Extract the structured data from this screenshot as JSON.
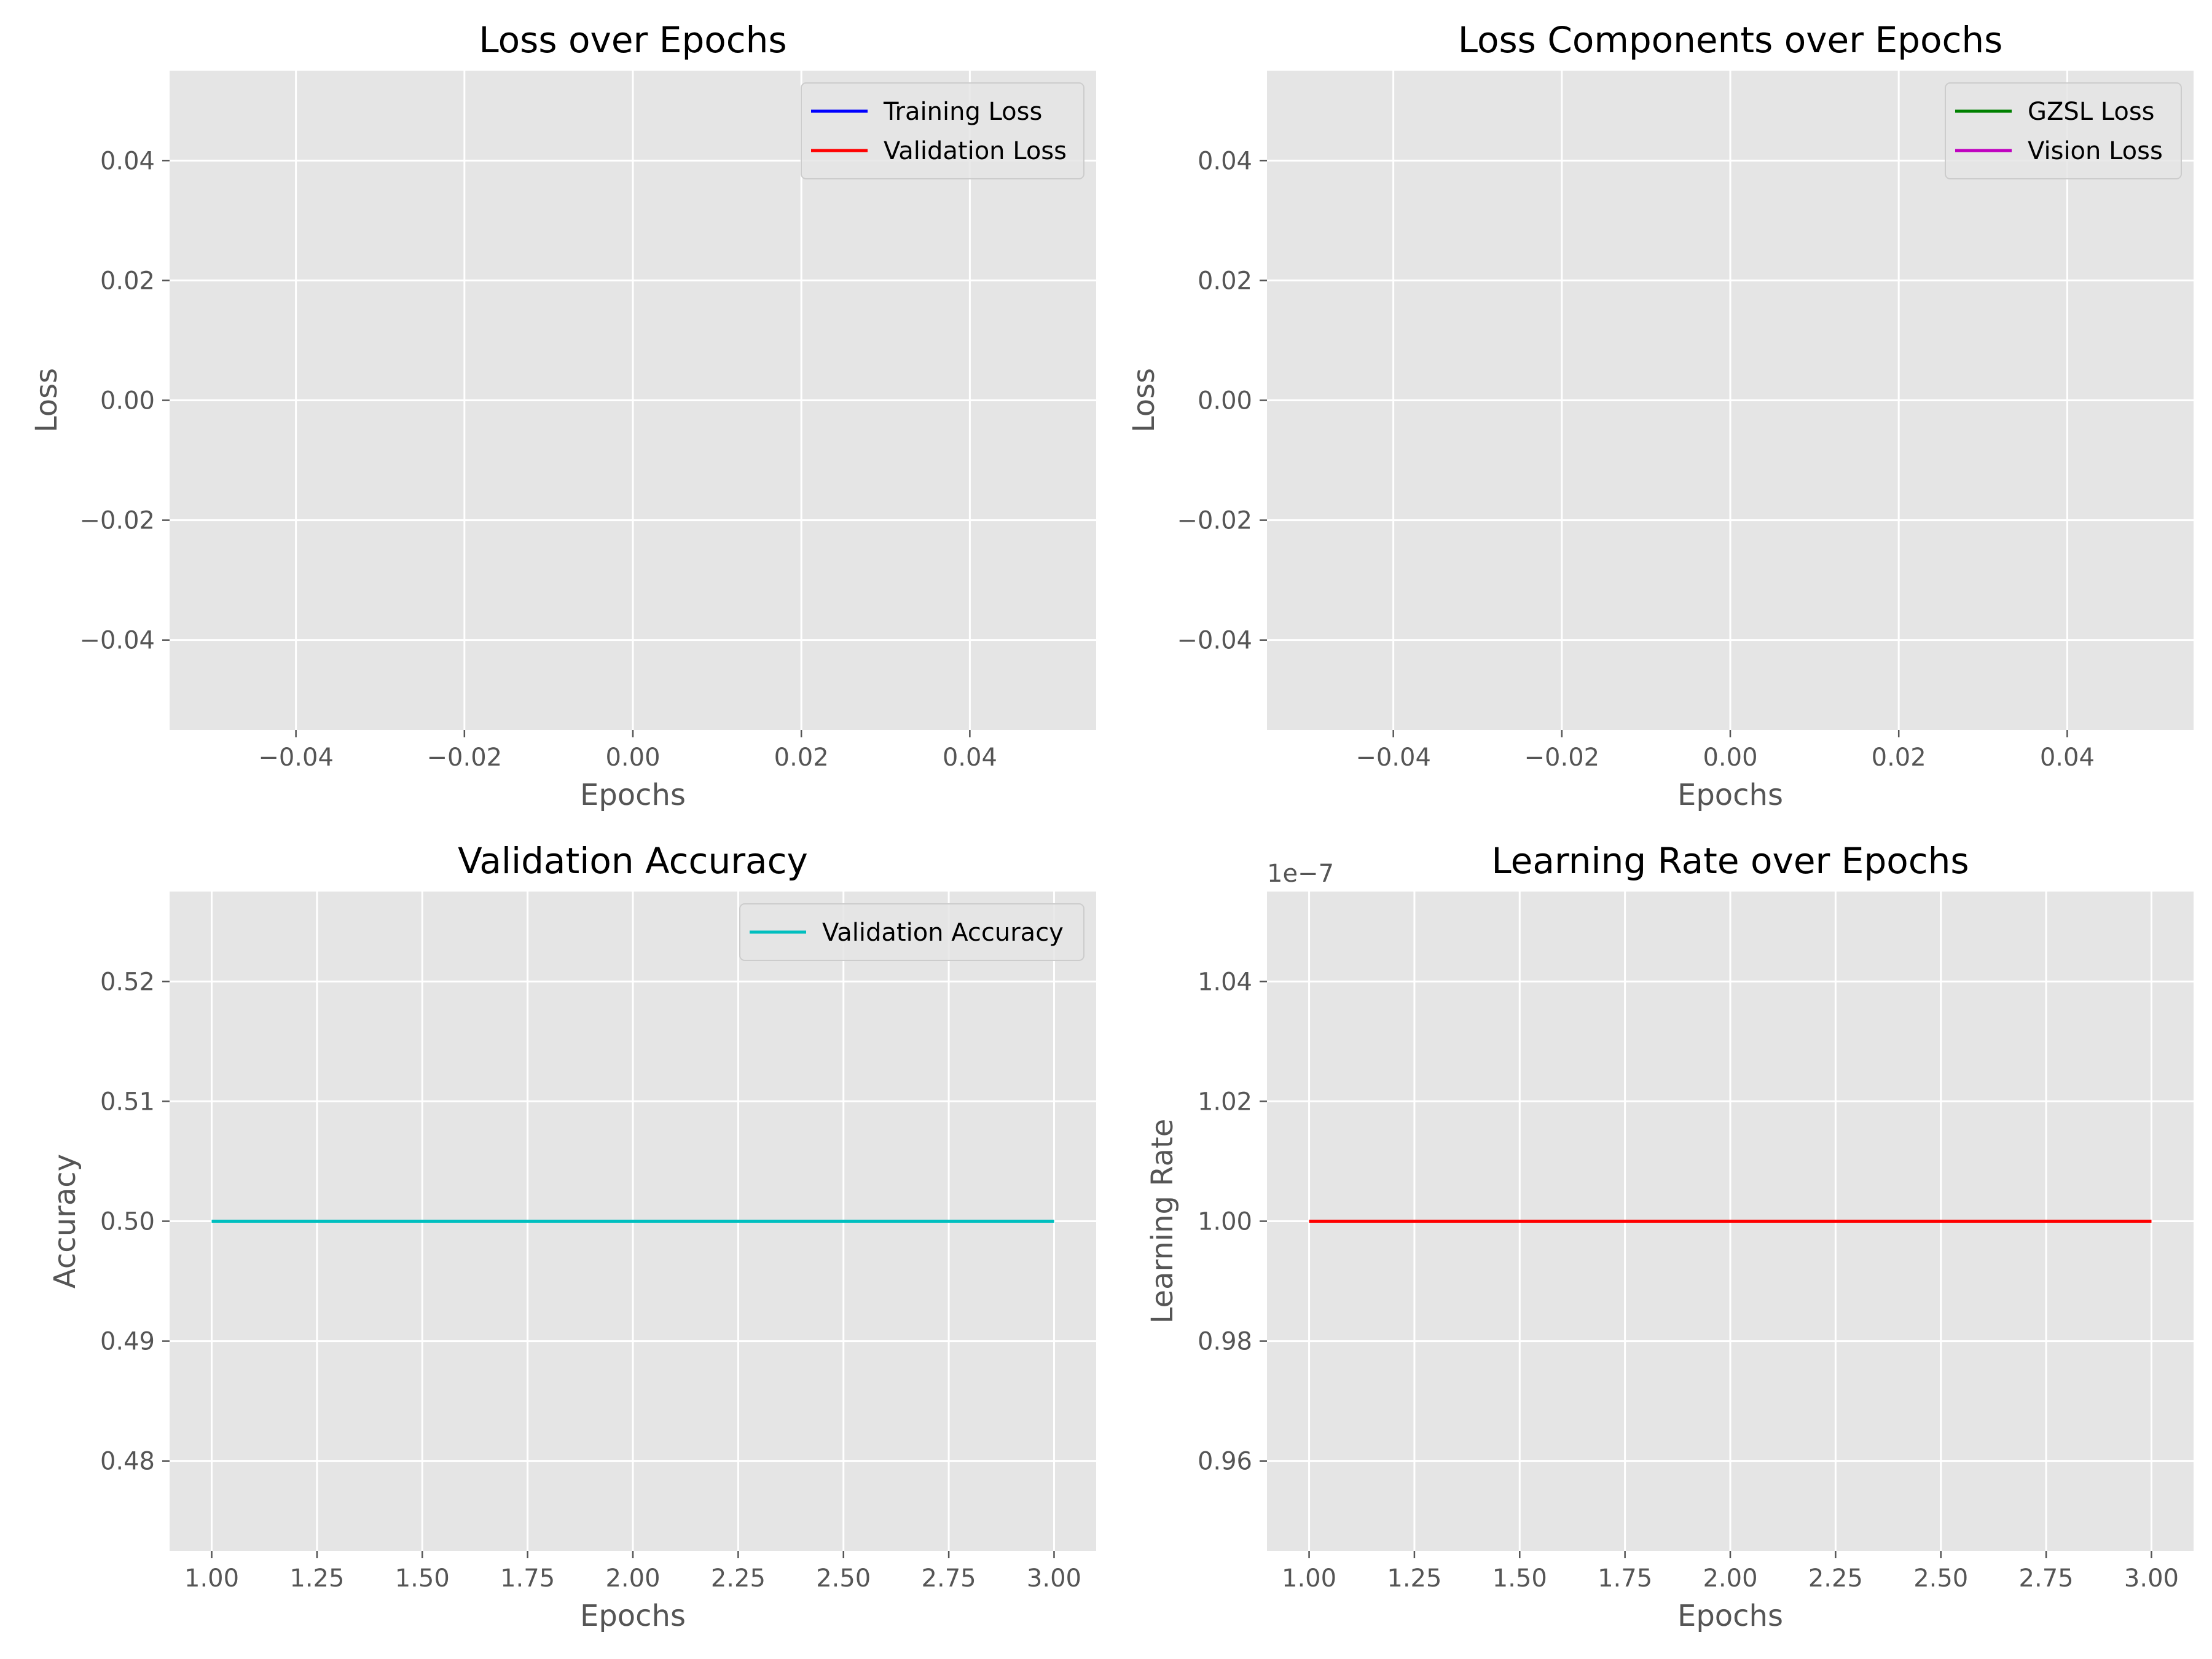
{
  "figure": {
    "background": "#ffffff"
  },
  "theme": {
    "axes_bg": "#e5e5e5",
    "grid": "#ffffff",
    "tick_color": "#555555",
    "text_color": "#000000",
    "legend_bg": "#e5e5e5",
    "legend_edge": "#cccccc"
  },
  "chart_data": [
    {
      "type": "line",
      "title": "Loss over Epochs",
      "xlabel": "Epochs",
      "ylabel": "Loss",
      "xlim": [
        -0.055,
        0.055
      ],
      "ylim": [
        -0.055,
        0.055
      ],
      "x_ticks": [
        -0.04,
        -0.02,
        0.0,
        0.02,
        0.04
      ],
      "x_tick_labels": [
        "−0.04",
        "−0.02",
        "0.00",
        "0.02",
        "0.04"
      ],
      "y_ticks": [
        -0.04,
        -0.02,
        0.0,
        0.02,
        0.04
      ],
      "y_tick_labels": [
        "−0.04",
        "−0.02",
        "0.00",
        "0.02",
        "0.04"
      ],
      "grid": true,
      "legend": "upper right",
      "series": [
        {
          "name": "Training Loss",
          "color": "#0000ff",
          "x": [],
          "y": []
        },
        {
          "name": "Validation Loss",
          "color": "#ff0000",
          "x": [],
          "y": []
        }
      ]
    },
    {
      "type": "line",
      "title": "Loss Components over Epochs",
      "xlabel": "Epochs",
      "ylabel": "Loss",
      "xlim": [
        -0.055,
        0.055
      ],
      "ylim": [
        -0.055,
        0.055
      ],
      "x_ticks": [
        -0.04,
        -0.02,
        0.0,
        0.02,
        0.04
      ],
      "x_tick_labels": [
        "−0.04",
        "−0.02",
        "0.00",
        "0.02",
        "0.04"
      ],
      "y_ticks": [
        -0.04,
        -0.02,
        0.0,
        0.02,
        0.04
      ],
      "y_tick_labels": [
        "−0.04",
        "−0.02",
        "0.00",
        "0.02",
        "0.04"
      ],
      "grid": true,
      "legend": "upper right",
      "series": [
        {
          "name": "GZSL Loss",
          "color": "#008000",
          "x": [],
          "y": []
        },
        {
          "name": "Vision Loss",
          "color": "#bf00bf",
          "x": [],
          "y": []
        }
      ]
    },
    {
      "type": "line",
      "title": "Validation Accuracy",
      "xlabel": "Epochs",
      "ylabel": "Accuracy",
      "xlim": [
        0.9,
        3.1
      ],
      "ylim": [
        0.4725,
        0.5275
      ],
      "x_ticks": [
        1.0,
        1.25,
        1.5,
        1.75,
        2.0,
        2.25,
        2.5,
        2.75,
        3.0
      ],
      "x_tick_labels": [
        "1.00",
        "1.25",
        "1.50",
        "1.75",
        "2.00",
        "2.25",
        "2.50",
        "2.75",
        "3.00"
      ],
      "y_ticks": [
        0.48,
        0.49,
        0.5,
        0.51,
        0.52
      ],
      "y_tick_labels": [
        "0.48",
        "0.49",
        "0.50",
        "0.51",
        "0.52"
      ],
      "grid": true,
      "legend": "upper right",
      "series": [
        {
          "name": "Validation Accuracy",
          "color": "#00bfbf",
          "x": [
            1,
            2,
            3
          ],
          "y": [
            0.5,
            0.5,
            0.5
          ]
        }
      ]
    },
    {
      "type": "line",
      "title": "Learning Rate over Epochs",
      "xlabel": "Epochs",
      "ylabel": "Learning Rate",
      "offset_text": "1e−7",
      "xlim": [
        0.9,
        3.1
      ],
      "ylim": [
        0.945,
        1.055
      ],
      "x_ticks": [
        1.0,
        1.25,
        1.5,
        1.75,
        2.0,
        2.25,
        2.5,
        2.75,
        3.0
      ],
      "x_tick_labels": [
        "1.00",
        "1.25",
        "1.50",
        "1.75",
        "2.00",
        "2.25",
        "2.50",
        "2.75",
        "3.00"
      ],
      "y_ticks": [
        0.96,
        0.98,
        1.0,
        1.02,
        1.04
      ],
      "y_tick_labels": [
        "0.96",
        "0.98",
        "1.00",
        "1.02",
        "1.04"
      ],
      "grid": true,
      "legend": "none",
      "series": [
        {
          "color": "#ff0000",
          "x": [
            1,
            2,
            3
          ],
          "y": [
            1.0,
            1.0,
            1.0
          ]
        }
      ]
    }
  ]
}
